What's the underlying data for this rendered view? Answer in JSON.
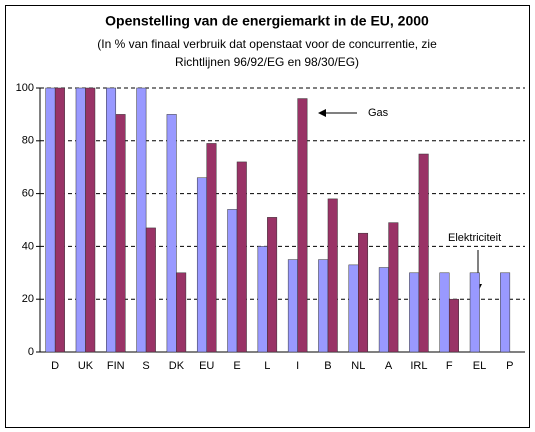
{
  "chart_data": {
    "type": "bar",
    "title": "Openstelling van de energiemarkt in de EU, 2000",
    "subtitle": [
      "(In % van finaal verbruik dat openstaat voor de concurrentie, zie",
      "Richtlijnen 96/92/EG en 98/30/EG)"
    ],
    "categories": [
      "D",
      "UK",
      "FIN",
      "S",
      "DK",
      "EU",
      "E",
      "L",
      "I",
      "B",
      "NL",
      "A",
      "IRL",
      "F",
      "EL",
      "P"
    ],
    "series": [
      {
        "name": "Elektriciteit",
        "color": "#9999ff",
        "values": [
          100,
          100,
          100,
          100,
          90,
          66,
          54,
          40,
          35,
          35,
          33,
          32,
          30,
          30,
          30,
          30
        ]
      },
      {
        "name": "Gas",
        "color": "#993366",
        "values": [
          100,
          100,
          90,
          47,
          30,
          79,
          72,
          51,
          96,
          58,
          45,
          49,
          75,
          20,
          null,
          null
        ]
      }
    ],
    "ylim": [
      0,
      100
    ],
    "yticks": [
      0,
      20,
      40,
      60,
      80,
      100
    ],
    "grid": true
  }
}
